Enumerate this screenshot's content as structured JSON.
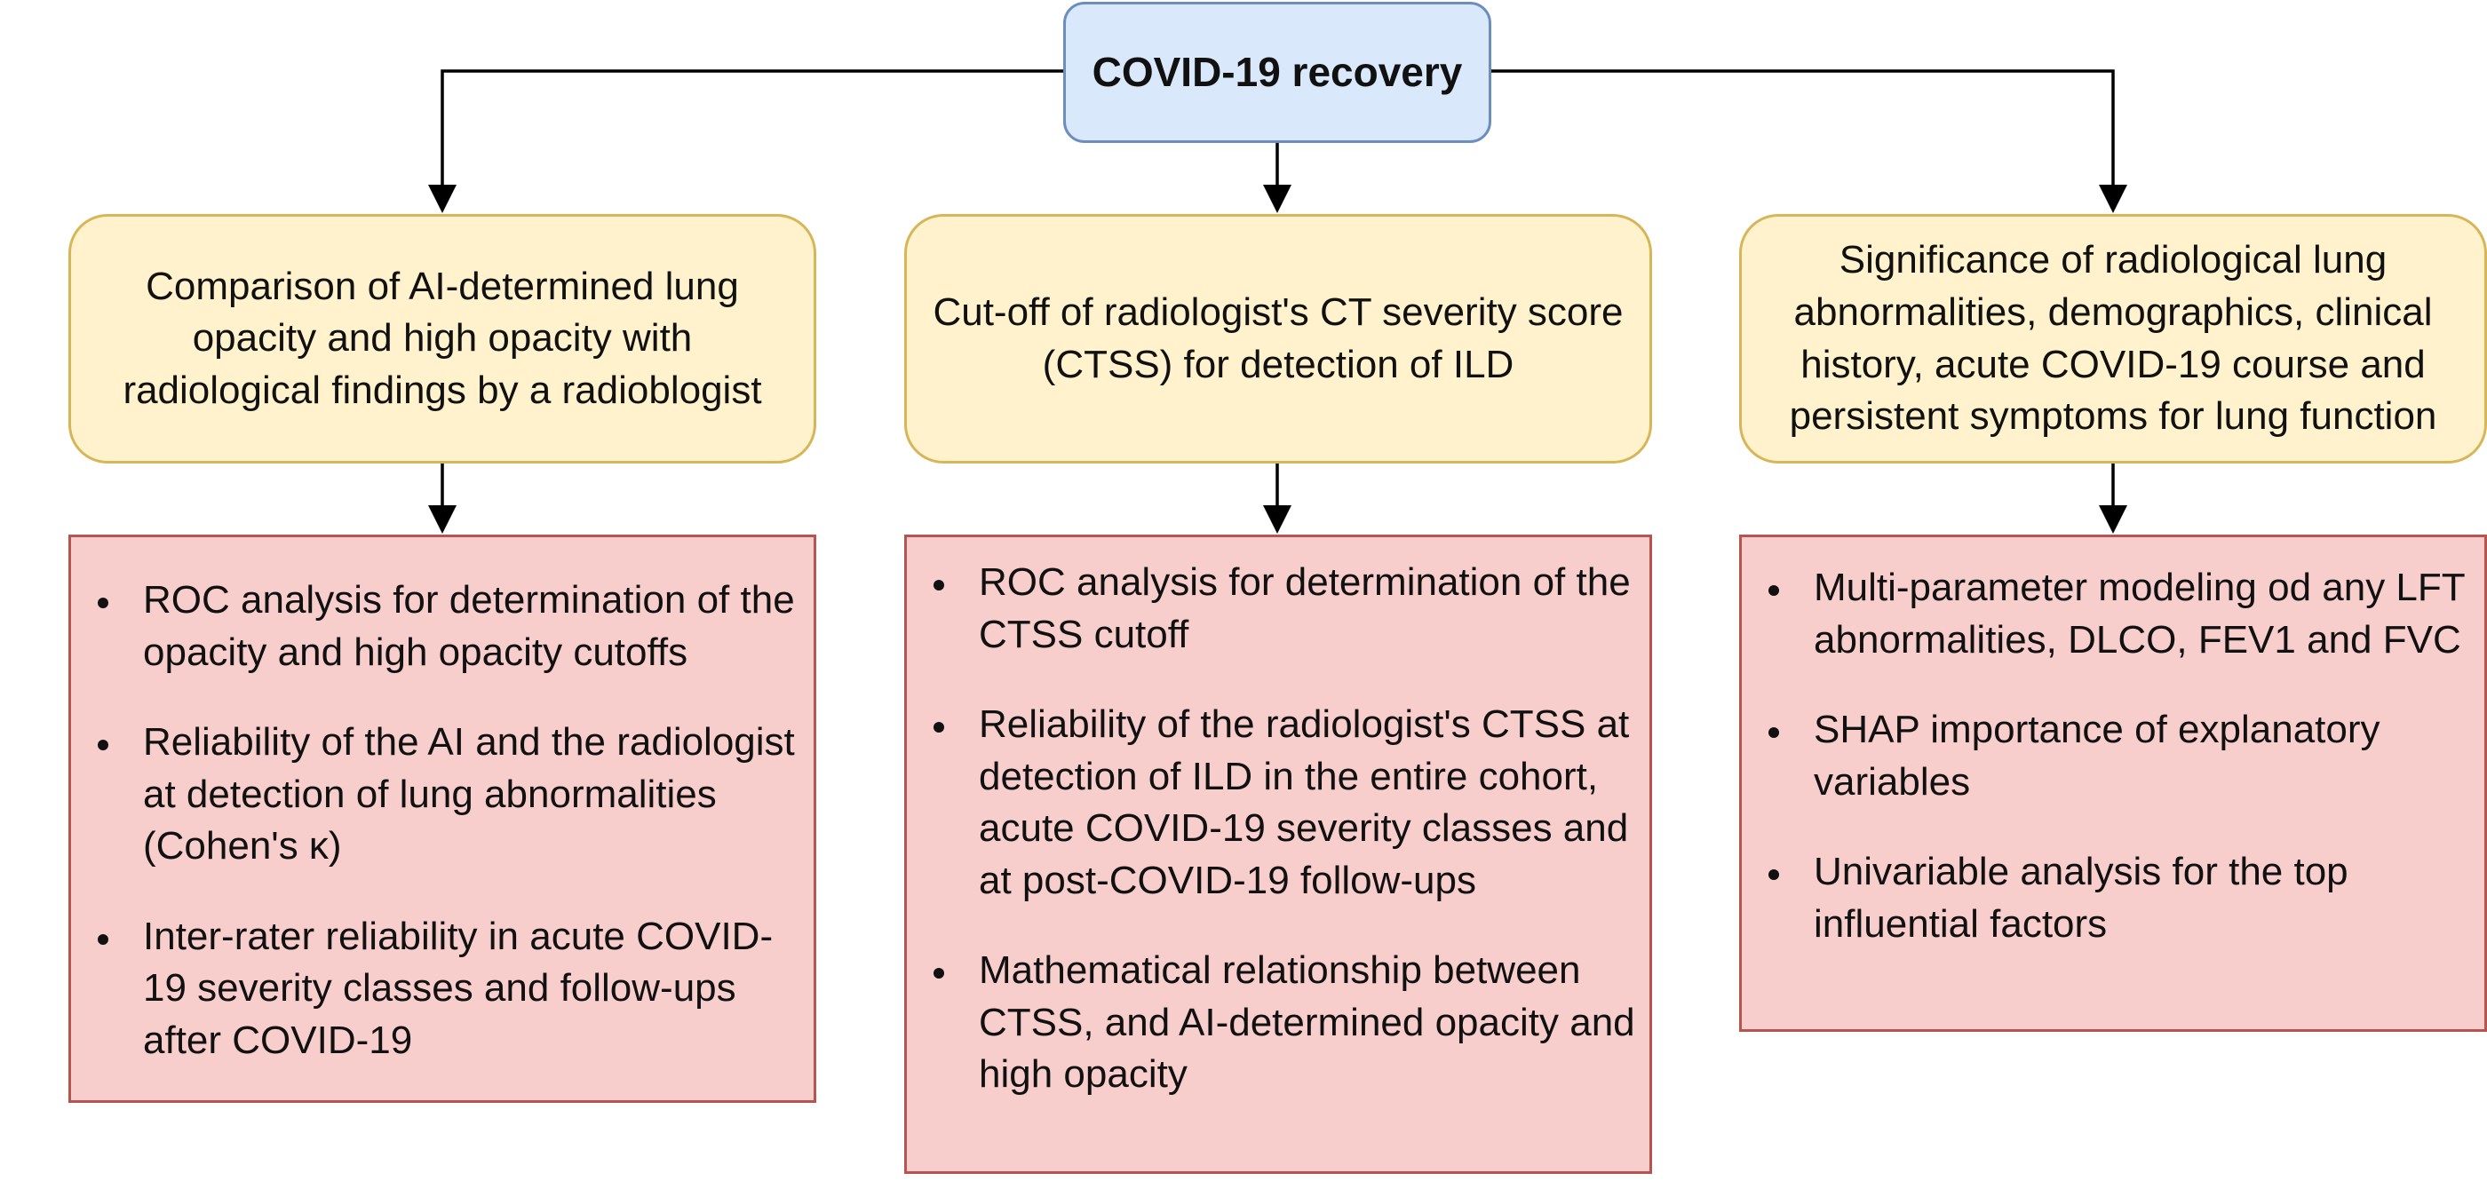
{
  "root": {
    "label": "COVID-19 recovery"
  },
  "branches": [
    {
      "topic": "Comparison of AI-determined lung opacity and high opacity with radiological findings by a radioblogist",
      "items": [
        "ROC analysis for determination of the opacity and high opacity cutoffs",
        "Reliability of the AI and the radiologist at detection of lung abnormalities (Cohen's κ)",
        "Inter-rater reliability in acute COVID-19 severity classes and follow-ups after COVID-19"
      ]
    },
    {
      "topic": "Cut-off of radiologist's CT severity score (CTSS) for detection of ILD",
      "items": [
        "ROC analysis for determination of the CTSS cutoff",
        "Reliability of the radiologist's CTSS at detection of ILD in the entire cohort, acute COVID-19 severity classes and at post-COVID-19 follow-ups",
        "Mathematical relationship between CTSS, and AI-determined opacity and high opacity"
      ]
    },
    {
      "topic": "Significance of radiological lung abnormalities, demographics, clinical history, acute COVID-19 course and persistent symptoms for lung function",
      "items": [
        "Multi-parameter modeling od any LFT abnormalities, DLCO, FEV1 and FVC",
        "SHAP importance of explanatory variables",
        "Univariable analysis for the top influential factors"
      ]
    }
  ],
  "colors": {
    "root_fill": "#dae8fc",
    "root_stroke": "#6c8ebf",
    "topic_fill": "#fff2cc",
    "topic_stroke": "#d6b656",
    "detail_fill": "#f8cecc",
    "detail_stroke": "#b85450",
    "connector": "#000000"
  }
}
